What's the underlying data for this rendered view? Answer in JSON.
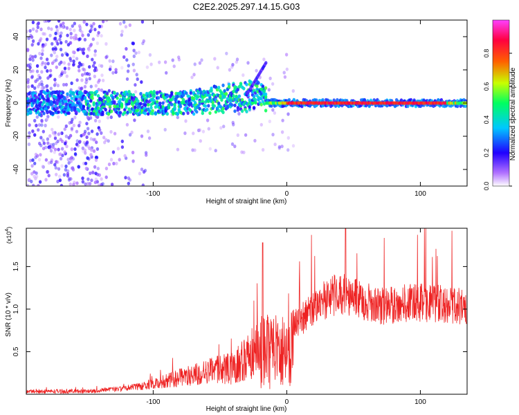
{
  "title": "C2E2.2025.297.14.15.G03",
  "chart_data": [
    {
      "type": "heatmap",
      "name": "spectrogram",
      "xlabel": "Height of straight line (km)",
      "ylabel": "Frequency (Hz)",
      "xlim": [
        -195,
        135
      ],
      "ylim": [
        -50,
        50
      ],
      "x_ticks": [
        -100,
        0,
        100
      ],
      "y_ticks": [
        -40,
        -20,
        0,
        20,
        40
      ],
      "colorbar": {
        "label": "Normalized spectral amplitude",
        "range": [
          0,
          1
        ],
        "ticks": [
          "0.0",
          "0.2",
          "0.4",
          "0.6",
          "0.8"
        ],
        "colors": [
          "#ffffff",
          "#b070ff",
          "#2000ff",
          "#00c8ff",
          "#00ff60",
          "#c8ff00",
          "#ff6000",
          "#ff0040",
          "#ff40ff"
        ]
      },
      "description_regions": [
        {
          "x_range": [
            -195,
            -140
          ],
          "freq_spread": 50,
          "amplitude": "low, scattered"
        },
        {
          "x_range": [
            -140,
            -15
          ],
          "freq_center": 0,
          "freq_spread": 8,
          "amplitude": "medium"
        },
        {
          "x_range": [
            -15,
            135
          ],
          "freq_center": 0,
          "freq_spread": 2,
          "amplitude": "high"
        }
      ]
    },
    {
      "type": "line",
      "name": "snr",
      "xlabel": "Height of straight line (km)",
      "ylabel": "SNR (10 * v/v)",
      "y_multiplier_label": "(x10",
      "y_multiplier_exp": "4",
      "xlim": [
        -195,
        135
      ],
      "ylim": [
        0,
        1.95
      ],
      "x_ticks": [
        -100,
        0,
        100
      ],
      "y_ticks": [
        "0.5",
        "1.0",
        "1.5"
      ],
      "color": "#ee2222",
      "envelope": [
        {
          "x": -195,
          "y": 0.05
        },
        {
          "x": -150,
          "y": 0.06
        },
        {
          "x": -120,
          "y": 0.1
        },
        {
          "x": -100,
          "y": 0.18
        },
        {
          "x": -80,
          "y": 0.3
        },
        {
          "x": -60,
          "y": 0.42
        },
        {
          "x": -40,
          "y": 0.5
        },
        {
          "x": -25,
          "y": 0.8
        },
        {
          "x": -15,
          "y": 1.0
        },
        {
          "x": 0,
          "y": 0.95
        },
        {
          "x": 10,
          "y": 1.05
        },
        {
          "x": 25,
          "y": 1.3
        },
        {
          "x": 40,
          "y": 1.45
        },
        {
          "x": 55,
          "y": 1.35
        },
        {
          "x": 70,
          "y": 1.25
        },
        {
          "x": 90,
          "y": 1.3
        },
        {
          "x": 110,
          "y": 1.3
        },
        {
          "x": 135,
          "y": 1.25
        }
      ]
    }
  ]
}
